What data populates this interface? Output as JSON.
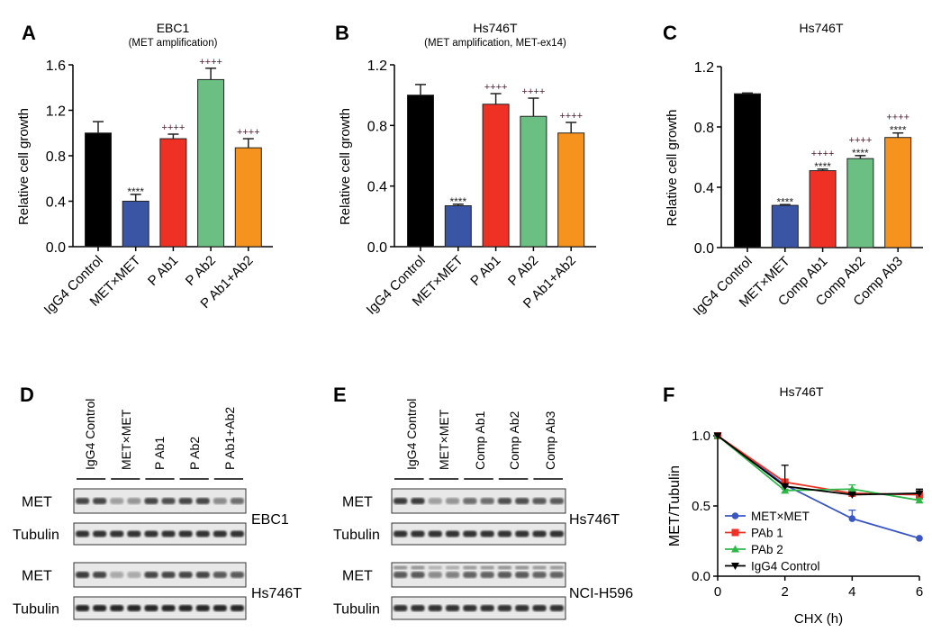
{
  "chart_data": [
    {
      "panel": "A",
      "type": "bar",
      "title": "EBC1",
      "subtitle": "(MET amplification)",
      "ylabel": "Relative cell growth",
      "ylim": [
        0,
        1.6
      ],
      "yticks": [
        "0.0",
        "0.4",
        "0.8",
        "1.2",
        "1.6"
      ],
      "categories": [
        "IgG4 Control",
        "MET×MET",
        "P Ab1",
        "P Ab2",
        "P Ab1+Ab2"
      ],
      "values": [
        1.0,
        0.4,
        0.95,
        1.47,
        0.87
      ],
      "errors": [
        0.1,
        0.06,
        0.04,
        0.1,
        0.08
      ],
      "annotations": [
        [],
        [
          "****"
        ],
        [
          "++++"
        ],
        [
          "++++"
        ],
        [
          "++++"
        ]
      ],
      "colors": [
        "#000000",
        "#3a55a4",
        "#ee3124",
        "#6bbf82",
        "#f6921e"
      ]
    },
    {
      "panel": "B",
      "type": "bar",
      "title": "Hs746T",
      "subtitle": "(MET amplification, MET-ex14)",
      "ylabel": "Relative cell growth",
      "ylim": [
        0,
        1.2
      ],
      "yticks": [
        "0.0",
        "0.4",
        "0.8",
        "1.2"
      ],
      "categories": [
        "IgG4 Control",
        "MET×MET",
        "P Ab1",
        "P Ab2",
        "P Ab1+Ab2"
      ],
      "values": [
        1.0,
        0.27,
        0.94,
        0.86,
        0.75
      ],
      "errors": [
        0.07,
        0.01,
        0.07,
        0.12,
        0.07
      ],
      "annotations": [
        [],
        [
          "****"
        ],
        [
          "++++"
        ],
        [
          "++++"
        ],
        [
          "++++"
        ]
      ],
      "colors": [
        "#000000",
        "#3a55a4",
        "#ee3124",
        "#6bbf82",
        "#f6921e"
      ]
    },
    {
      "panel": "C",
      "type": "bar",
      "title": "Hs746T",
      "subtitle": "",
      "ylabel": "Relative cell growth",
      "ylim": [
        0,
        1.2
      ],
      "yticks": [
        "0.0",
        "0.4",
        "0.8",
        "1.2"
      ],
      "categories": [
        "IgG4 Control",
        "MET×MET",
        "Comp Ab1",
        "Comp Ab2",
        "Comp Ab3"
      ],
      "values": [
        1.02,
        0.28,
        0.51,
        0.59,
        0.73
      ],
      "errors": [
        0.005,
        0.005,
        0.01,
        0.02,
        0.03
      ],
      "annotations": [
        [],
        [
          "****"
        ],
        [
          "++++",
          "****"
        ],
        [
          "++++",
          "****"
        ],
        [
          "++++",
          "****"
        ]
      ],
      "colors": [
        "#000000",
        "#3a55a4",
        "#ee3124",
        "#6bbf82",
        "#f6921e"
      ]
    },
    {
      "panel": "F",
      "type": "line",
      "title": "Hs746T",
      "xlabel": "CHX (h)",
      "ylabel": "MET/Tubulin",
      "x": [
        0,
        2,
        4,
        6
      ],
      "xticks": [
        "0",
        "2",
        "4",
        "6"
      ],
      "ylim": [
        0,
        1.0
      ],
      "yticks": [
        "0.0",
        "0.5",
        "1.0"
      ],
      "legend_position": "bottom-left",
      "series": [
        {
          "name": "MET×MET",
          "values": [
            1.0,
            0.65,
            0.41,
            0.27
          ],
          "errors": [
            0,
            0,
            0.06,
            0
          ],
          "color": "#3a55c4",
          "marker": "circle"
        },
        {
          "name": "PAb 1",
          "values": [
            1.0,
            0.67,
            0.59,
            0.58
          ],
          "errors": [
            0,
            0.02,
            0.02,
            0.02
          ],
          "color": "#ee3124",
          "marker": "square"
        },
        {
          "name": "PAb 2",
          "values": [
            1.0,
            0.61,
            0.62,
            0.54
          ],
          "errors": [
            0,
            0.01,
            0.03,
            0.01
          ],
          "color": "#2eb84a",
          "marker": "triangle-up"
        },
        {
          "name": "IgG4 Control",
          "values": [
            1.0,
            0.64,
            0.58,
            0.59
          ],
          "errors": [
            0,
            0.15,
            0.01,
            0.03
          ],
          "color": "#000000",
          "marker": "triangle-down"
        }
      ]
    }
  ],
  "blots": [
    {
      "panel": "D",
      "lanes": [
        "IgG4 Control",
        "MET×MET",
        "P Ab1",
        "P Ab2",
        "P Ab1+Ab2"
      ],
      "groups": [
        {
          "cell_line": "EBC1",
          "rows": [
            {
              "label": "MET",
              "intensity": [
                0.8,
                0.8,
                0.35,
                0.4,
                0.8,
                0.75,
                0.8,
                0.8,
                0.45,
                0.6
              ]
            },
            {
              "label": "Tubulin",
              "intensity": [
                0.9,
                0.9,
                0.9,
                0.9,
                0.9,
                0.9,
                0.9,
                0.9,
                0.9,
                0.9
              ]
            }
          ]
        },
        {
          "cell_line": "Hs746T",
          "rows": [
            {
              "label": "MET",
              "intensity": [
                0.85,
                0.8,
                0.3,
                0.3,
                0.8,
                0.8,
                0.8,
                0.8,
                0.7,
                0.7
              ]
            },
            {
              "label": "Tubulin",
              "intensity": [
                0.95,
                0.95,
                0.95,
                0.95,
                0.95,
                0.95,
                0.95,
                0.95,
                0.95,
                0.95
              ]
            }
          ]
        }
      ]
    },
    {
      "panel": "E",
      "lanes": [
        "IgG4 Control",
        "MET×MET",
        "Comp Ab1",
        "Comp Ab2",
        "Comp Ab3"
      ],
      "groups": [
        {
          "cell_line": "Hs746T",
          "rows": [
            {
              "label": "MET",
              "intensity": [
                0.85,
                0.85,
                0.35,
                0.4,
                0.6,
                0.6,
                0.75,
                0.75,
                0.7,
                0.7
              ]
            },
            {
              "label": "Tubulin",
              "intensity": [
                0.9,
                0.9,
                0.9,
                0.9,
                0.9,
                0.9,
                0.9,
                0.9,
                0.9,
                0.9
              ]
            }
          ]
        },
        {
          "cell_line": "NCI-H596",
          "rows": [
            {
              "label": "MET",
              "intensity": [
                0.7,
                0.7,
                0.45,
                0.5,
                0.65,
                0.65,
                0.7,
                0.7,
                0.65,
                0.65
              ]
            },
            {
              "label": "Tubulin",
              "intensity": [
                0.9,
                0.9,
                0.9,
                0.9,
                0.9,
                0.9,
                0.9,
                0.9,
                0.9,
                0.9
              ]
            }
          ]
        }
      ]
    }
  ]
}
